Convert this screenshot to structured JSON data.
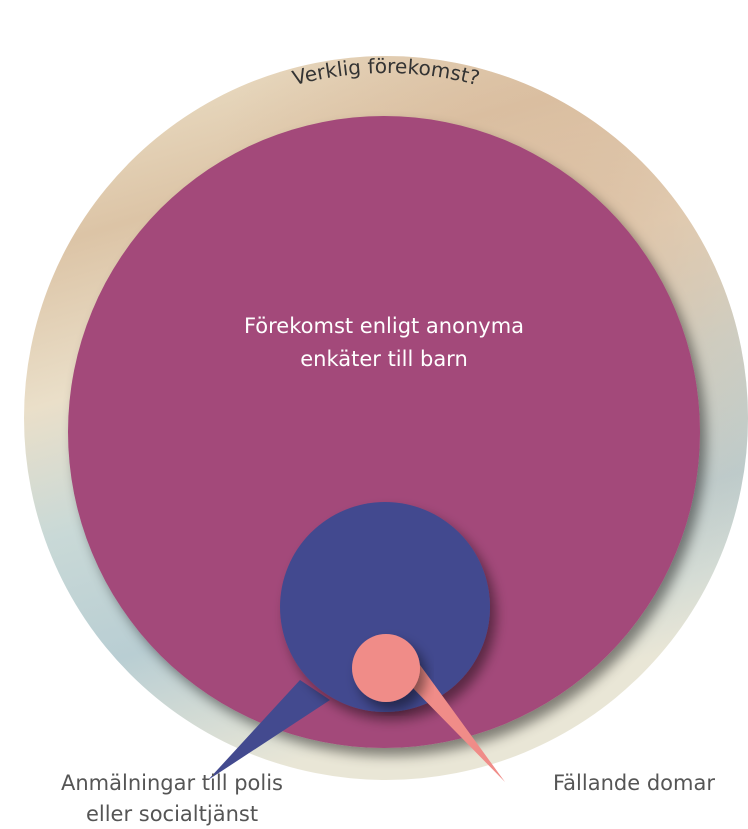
{
  "labels": {
    "actual": "Verklig förekomst?",
    "surveys": [
      "Förekomst enligt anonyma",
      "enkäter till barn"
    ],
    "reports": [
      "Anmälningar till polis",
      "eller socialtjänst"
    ],
    "convictions": "Fällande domar"
  }
}
